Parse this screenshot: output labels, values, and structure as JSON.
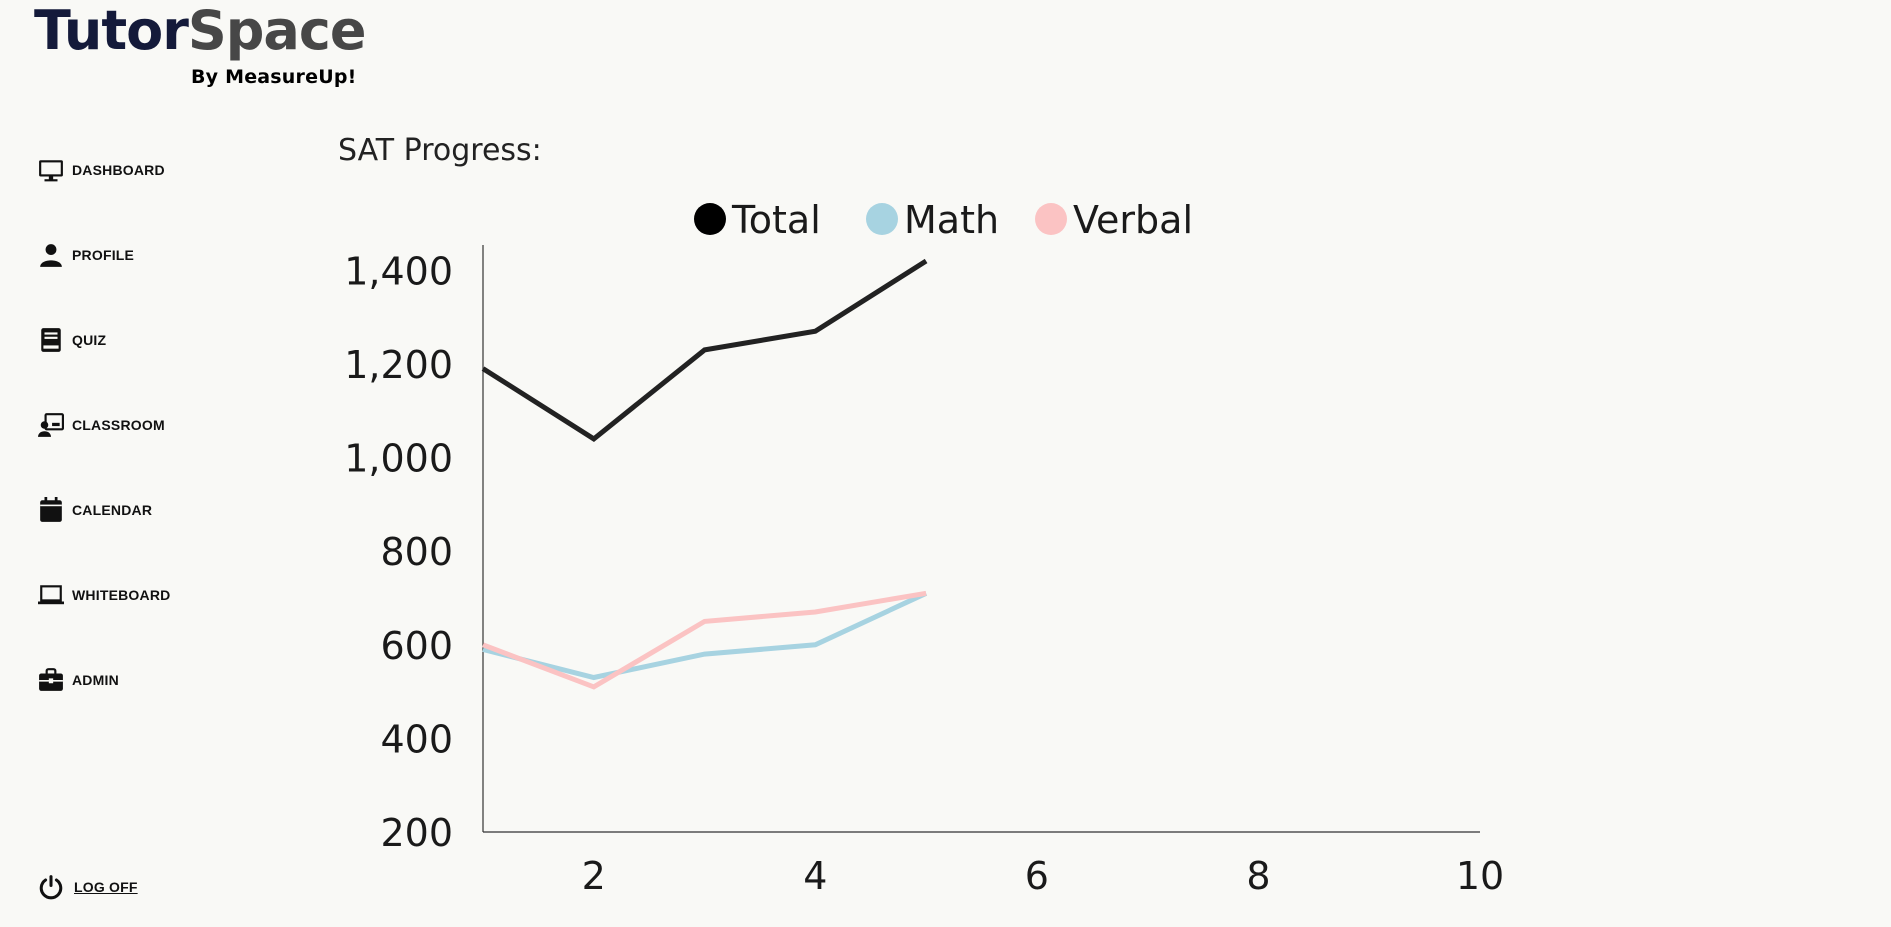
{
  "app": {
    "logo_part1": "Tutor",
    "logo_part2": "Space",
    "logo_sub": "By MeasureUp!"
  },
  "sidebar": {
    "items": [
      {
        "label": "DASHBOARD",
        "icon": "monitor-icon"
      },
      {
        "label": "PROFILE",
        "icon": "person-icon"
      },
      {
        "label": "QUIZ",
        "icon": "book-icon"
      },
      {
        "label": "CLASSROOM",
        "icon": "classroom-icon"
      },
      {
        "label": "CALENDAR",
        "icon": "calendar-icon"
      },
      {
        "label": "WHITEBOARD",
        "icon": "laptop-icon"
      },
      {
        "label": "ADMIN",
        "icon": "briefcase-icon"
      }
    ],
    "logoff": {
      "label": "LOG OFF",
      "icon": "power-icon"
    }
  },
  "main": {
    "title": "SAT Progress:"
  },
  "chart_data": {
    "type": "line",
    "title": "",
    "xlabel": "",
    "ylabel": "",
    "xlim": [
      1,
      10
    ],
    "ylim": [
      200,
      1420
    ],
    "x_ticks": [
      2,
      4,
      6,
      8,
      10
    ],
    "y_ticks": [
      200,
      400,
      600,
      800,
      1000,
      1200,
      1400
    ],
    "grid": false,
    "legend_position": "top-center",
    "x": [
      1,
      2,
      3,
      4,
      5
    ],
    "series": [
      {
        "name": "Total",
        "color": "#222222",
        "legend_color": "#000000",
        "values": [
          1190,
          1040,
          1230,
          1270,
          1420
        ]
      },
      {
        "name": "Math",
        "color": "#a7d3e1",
        "legend_color": "#a7d3e1",
        "values": [
          590,
          530,
          580,
          600,
          710
        ]
      },
      {
        "name": "Verbal",
        "color": "#fbc3c3",
        "legend_color": "#fbc3c3",
        "values": [
          600,
          510,
          650,
          670,
          710
        ]
      }
    ]
  }
}
